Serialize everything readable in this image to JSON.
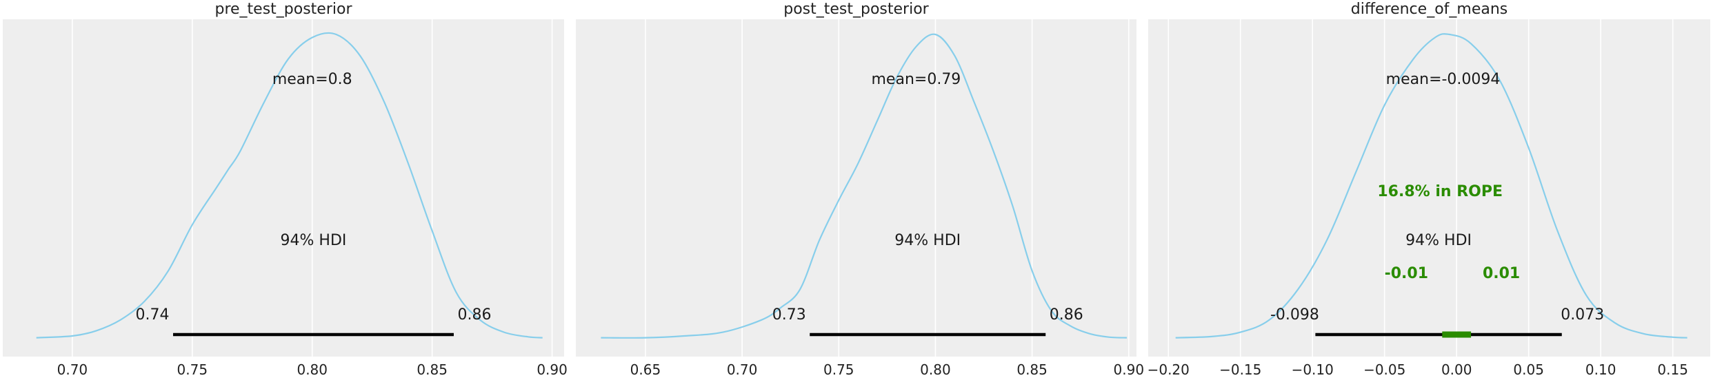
{
  "figure": {
    "panel_bg": "#eeeeee",
    "grid_color": "#ffffff",
    "kde_color": "#87ceeb",
    "hdi_color": "#000000",
    "rope_color": "#2a8c00"
  },
  "chart_data": [
    {
      "type": "line",
      "title": "pre_test_posterior",
      "xlim": [
        0.671,
        0.905
      ],
      "xticks": [
        0.7,
        0.75,
        0.8,
        0.85,
        0.9
      ],
      "xtick_labels": [
        "0.70",
        "0.75",
        "0.80",
        "0.85",
        "0.90"
      ],
      "grid": true,
      "series": [
        {
          "x": [
            0.685,
            0.7,
            0.71,
            0.72,
            0.73,
            0.74,
            0.75,
            0.76,
            0.765,
            0.77,
            0.78,
            0.79,
            0.8,
            0.81,
            0.82,
            0.83,
            0.84,
            0.85,
            0.86,
            0.87,
            0.88,
            0.89,
            0.896
          ],
          "y": [
            0.012,
            0.018,
            0.035,
            0.07,
            0.13,
            0.23,
            0.38,
            0.5,
            0.56,
            0.62,
            0.78,
            0.92,
            0.99,
            1.0,
            0.93,
            0.78,
            0.58,
            0.36,
            0.16,
            0.07,
            0.03,
            0.015,
            0.012
          ]
        }
      ],
      "mean_label": "mean=0.8",
      "mean": 0.8,
      "hdi_label": "94% HDI",
      "hdi": [
        0.742,
        0.859
      ],
      "hdi_lower_label": "0.74",
      "hdi_upper_label": "0.86"
    },
    {
      "type": "line",
      "title": "post_test_posterior",
      "xlim": [
        0.614,
        0.904
      ],
      "xticks": [
        0.65,
        0.7,
        0.75,
        0.8,
        0.85,
        0.9
      ],
      "xtick_labels": [
        "0.65",
        "0.70",
        "0.75",
        "0.80",
        "0.85",
        "0.90"
      ],
      "grid": true,
      "series": [
        {
          "x": [
            0.627,
            0.65,
            0.67,
            0.69,
            0.71,
            0.72,
            0.73,
            0.74,
            0.75,
            0.76,
            0.77,
            0.78,
            0.79,
            0.8,
            0.81,
            0.82,
            0.83,
            0.84,
            0.85,
            0.86,
            0.87,
            0.88,
            0.89,
            0.899
          ],
          "y": [
            0.012,
            0.012,
            0.018,
            0.03,
            0.07,
            0.11,
            0.17,
            0.33,
            0.46,
            0.58,
            0.72,
            0.86,
            0.96,
            1.0,
            0.93,
            0.78,
            0.62,
            0.44,
            0.23,
            0.1,
            0.05,
            0.025,
            0.014,
            0.012
          ]
        }
      ],
      "mean_label": "mean=0.79",
      "mean": 0.79,
      "hdi_label": "94% HDI",
      "hdi": [
        0.735,
        0.857
      ],
      "hdi_lower_label": "0.73",
      "hdi_upper_label": "0.86"
    },
    {
      "type": "line",
      "title": "difference_of_means",
      "xlim": [
        -0.214,
        0.176
      ],
      "xticks": [
        -0.2,
        -0.15,
        -0.1,
        -0.05,
        0.0,
        0.05,
        0.1,
        0.15
      ],
      "xtick_labels": [
        "−0.20",
        "−0.15",
        "−0.10",
        "−0.05",
        "0.00",
        "0.05",
        "0.10",
        "0.15"
      ],
      "grid": true,
      "series": [
        {
          "x": [
            -0.195,
            -0.17,
            -0.15,
            -0.13,
            -0.11,
            -0.09,
            -0.07,
            -0.05,
            -0.03,
            -0.015,
            -0.005,
            0.01,
            0.03,
            0.05,
            0.07,
            0.09,
            0.11,
            0.13,
            0.15,
            0.16
          ],
          "y": [
            0.012,
            0.016,
            0.03,
            0.07,
            0.17,
            0.33,
            0.55,
            0.77,
            0.92,
            0.99,
            1.0,
            0.97,
            0.85,
            0.63,
            0.36,
            0.15,
            0.06,
            0.025,
            0.014,
            0.012
          ]
        }
      ],
      "mean_label": "mean=-0.0094",
      "mean": -0.0094,
      "hdi_label": "94% HDI",
      "hdi": [
        -0.098,
        0.073
      ],
      "hdi_lower_label": "-0.098",
      "hdi_upper_label": "0.073",
      "rope_label": "16.8% in ROPE",
      "rope": [
        -0.01,
        0.01
      ],
      "rope_lower_label": "-0.01",
      "rope_upper_label": "0.01"
    }
  ]
}
